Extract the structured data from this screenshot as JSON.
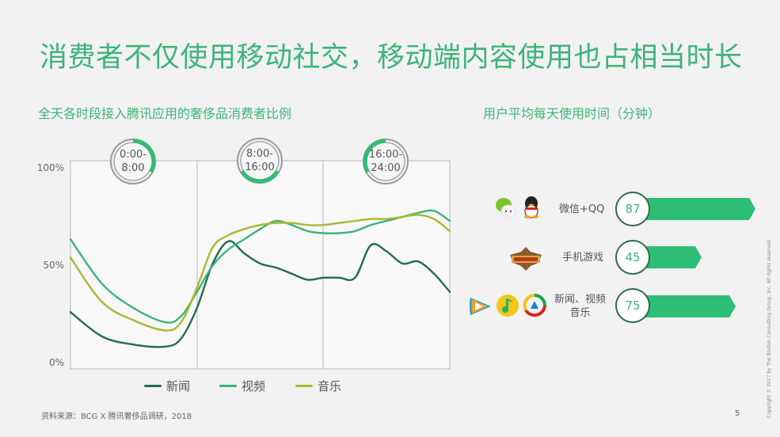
{
  "page": {
    "title": "消费者不仅使用移动社交，移动端内容使用也占相当时长",
    "page_number": "5",
    "source": "资料来源：BCG X 腾讯奢侈品调研，2018",
    "copyright": "Copyright © 2017 by The Boston Consulting Group, Inc. All rights reserved."
  },
  "left_panel": {
    "subtitle": "全天各时段接入腾讯应用的奢侈品消费者比例",
    "y_ticks": [
      "100%",
      "50%",
      "0%"
    ],
    "time_periods": [
      {
        "line1": "0:00-",
        "line2": "8:00"
      },
      {
        "line1": "8:00-",
        "line2": "16:00"
      },
      {
        "line1": "16:00-",
        "line2": "24:00"
      }
    ],
    "legend": [
      {
        "label": "新闻",
        "color": "#236b4f"
      },
      {
        "label": "视频",
        "color": "#3db37a"
      },
      {
        "label": "音乐",
        "color": "#a8b832"
      }
    ]
  },
  "right_panel": {
    "subtitle": "用户平均每天使用时间（分钟）",
    "bars": [
      {
        "label": "微信+QQ",
        "value": "87",
        "icons": [
          "wechat-icon",
          "qq-icon"
        ]
      },
      {
        "label": "手机游戏",
        "value": "45",
        "icons": [
          "honor-of-kings-icon"
        ]
      },
      {
        "label": "新闻、视频\n音乐",
        "label_line1": "新闻、视频",
        "label_line2": "音乐",
        "value": "75",
        "icons": [
          "tencent-video-icon",
          "qq-music-icon",
          "tencent-news-icon"
        ]
      }
    ]
  },
  "chart_data": [
    {
      "type": "line",
      "title": "全天各时段接入腾讯应用的奢侈品消费者比例",
      "xlabel": "",
      "ylabel": "",
      "ylim": [
        0,
        100
      ],
      "y_tick_labels": [
        "0%",
        "50%",
        "100%"
      ],
      "x": [
        0,
        2,
        4,
        6,
        7,
        8,
        9,
        10,
        11,
        12,
        13,
        14,
        15,
        16,
        17,
        18,
        19,
        20,
        21,
        22,
        23,
        24
      ],
      "x_sections": [
        "0:00-8:00",
        "8:00-16:00",
        "16:00-24:00"
      ],
      "series": [
        {
          "name": "新闻",
          "color": "#236b4f",
          "values": [
            28,
            16,
            12,
            11,
            15,
            30,
            52,
            63,
            57,
            52,
            50,
            47,
            44,
            45,
            45,
            45,
            61,
            58,
            52,
            53,
            47,
            38
          ]
        },
        {
          "name": "视频",
          "color": "#3db37a",
          "values": [
            64,
            42,
            30,
            23,
            26,
            38,
            51,
            59,
            64,
            69,
            73,
            71,
            68,
            67,
            67,
            68,
            71,
            73,
            75,
            77,
            78,
            73
          ]
        },
        {
          "name": "音乐",
          "color": "#a8b832",
          "values": [
            55,
            33,
            24,
            19,
            23,
            40,
            60,
            66,
            69,
            71,
            72,
            72,
            71,
            71,
            72,
            73,
            74,
            74,
            75,
            76,
            74,
            68
          ]
        }
      ],
      "grid": false,
      "legend_position": "bottom"
    },
    {
      "type": "bar",
      "title": "用户平均每天使用时间（分钟）",
      "orientation": "horizontal",
      "categories": [
        "微信+QQ",
        "手机游戏",
        "新闻、视频音乐"
      ],
      "values": [
        87,
        45,
        75
      ],
      "ylabel": "分钟"
    }
  ]
}
